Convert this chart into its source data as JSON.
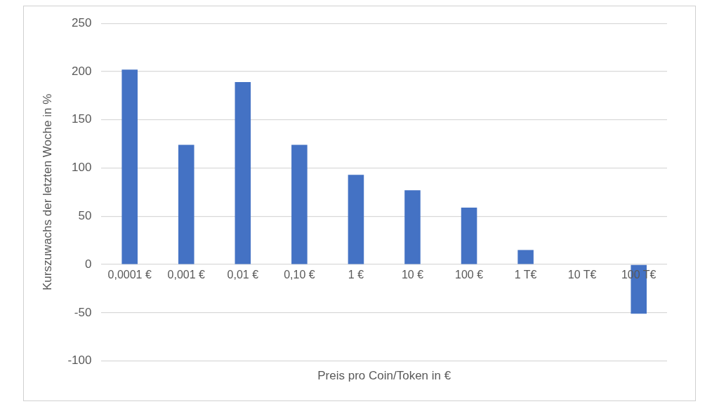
{
  "chart_data": {
    "type": "bar",
    "xlabel": "Preis pro Coin/Token in €",
    "ylabel": "Kurszuwachs der letzten Woche in %",
    "categories": [
      "0,0001 €",
      "0,001 €",
      "0,01 €",
      "0,10 €",
      "1 €",
      "10 €",
      "100 €",
      "1 T€",
      "10 T€",
      "100 T€"
    ],
    "values": [
      202,
      124,
      189,
      124,
      93,
      77,
      59,
      15,
      0,
      -51
    ],
    "color": "#4472c4",
    "ylim": [
      -100,
      250
    ],
    "yticks": [
      -100,
      -50,
      0,
      50,
      100,
      150,
      200,
      250
    ],
    "grid": "y",
    "legend": false
  }
}
